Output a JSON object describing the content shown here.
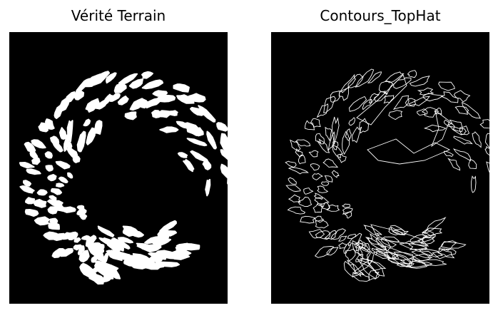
{
  "figure": {
    "left_panel": {
      "title": "Vérité Terrain",
      "background": "#000000",
      "foreground": "#ffffff",
      "content": "binary-mask-blobs"
    },
    "right_panel": {
      "title": "Contours_TopHat",
      "background": "#000000",
      "foreground": "#ffffff",
      "content": "white-outline-contours"
    }
  }
}
